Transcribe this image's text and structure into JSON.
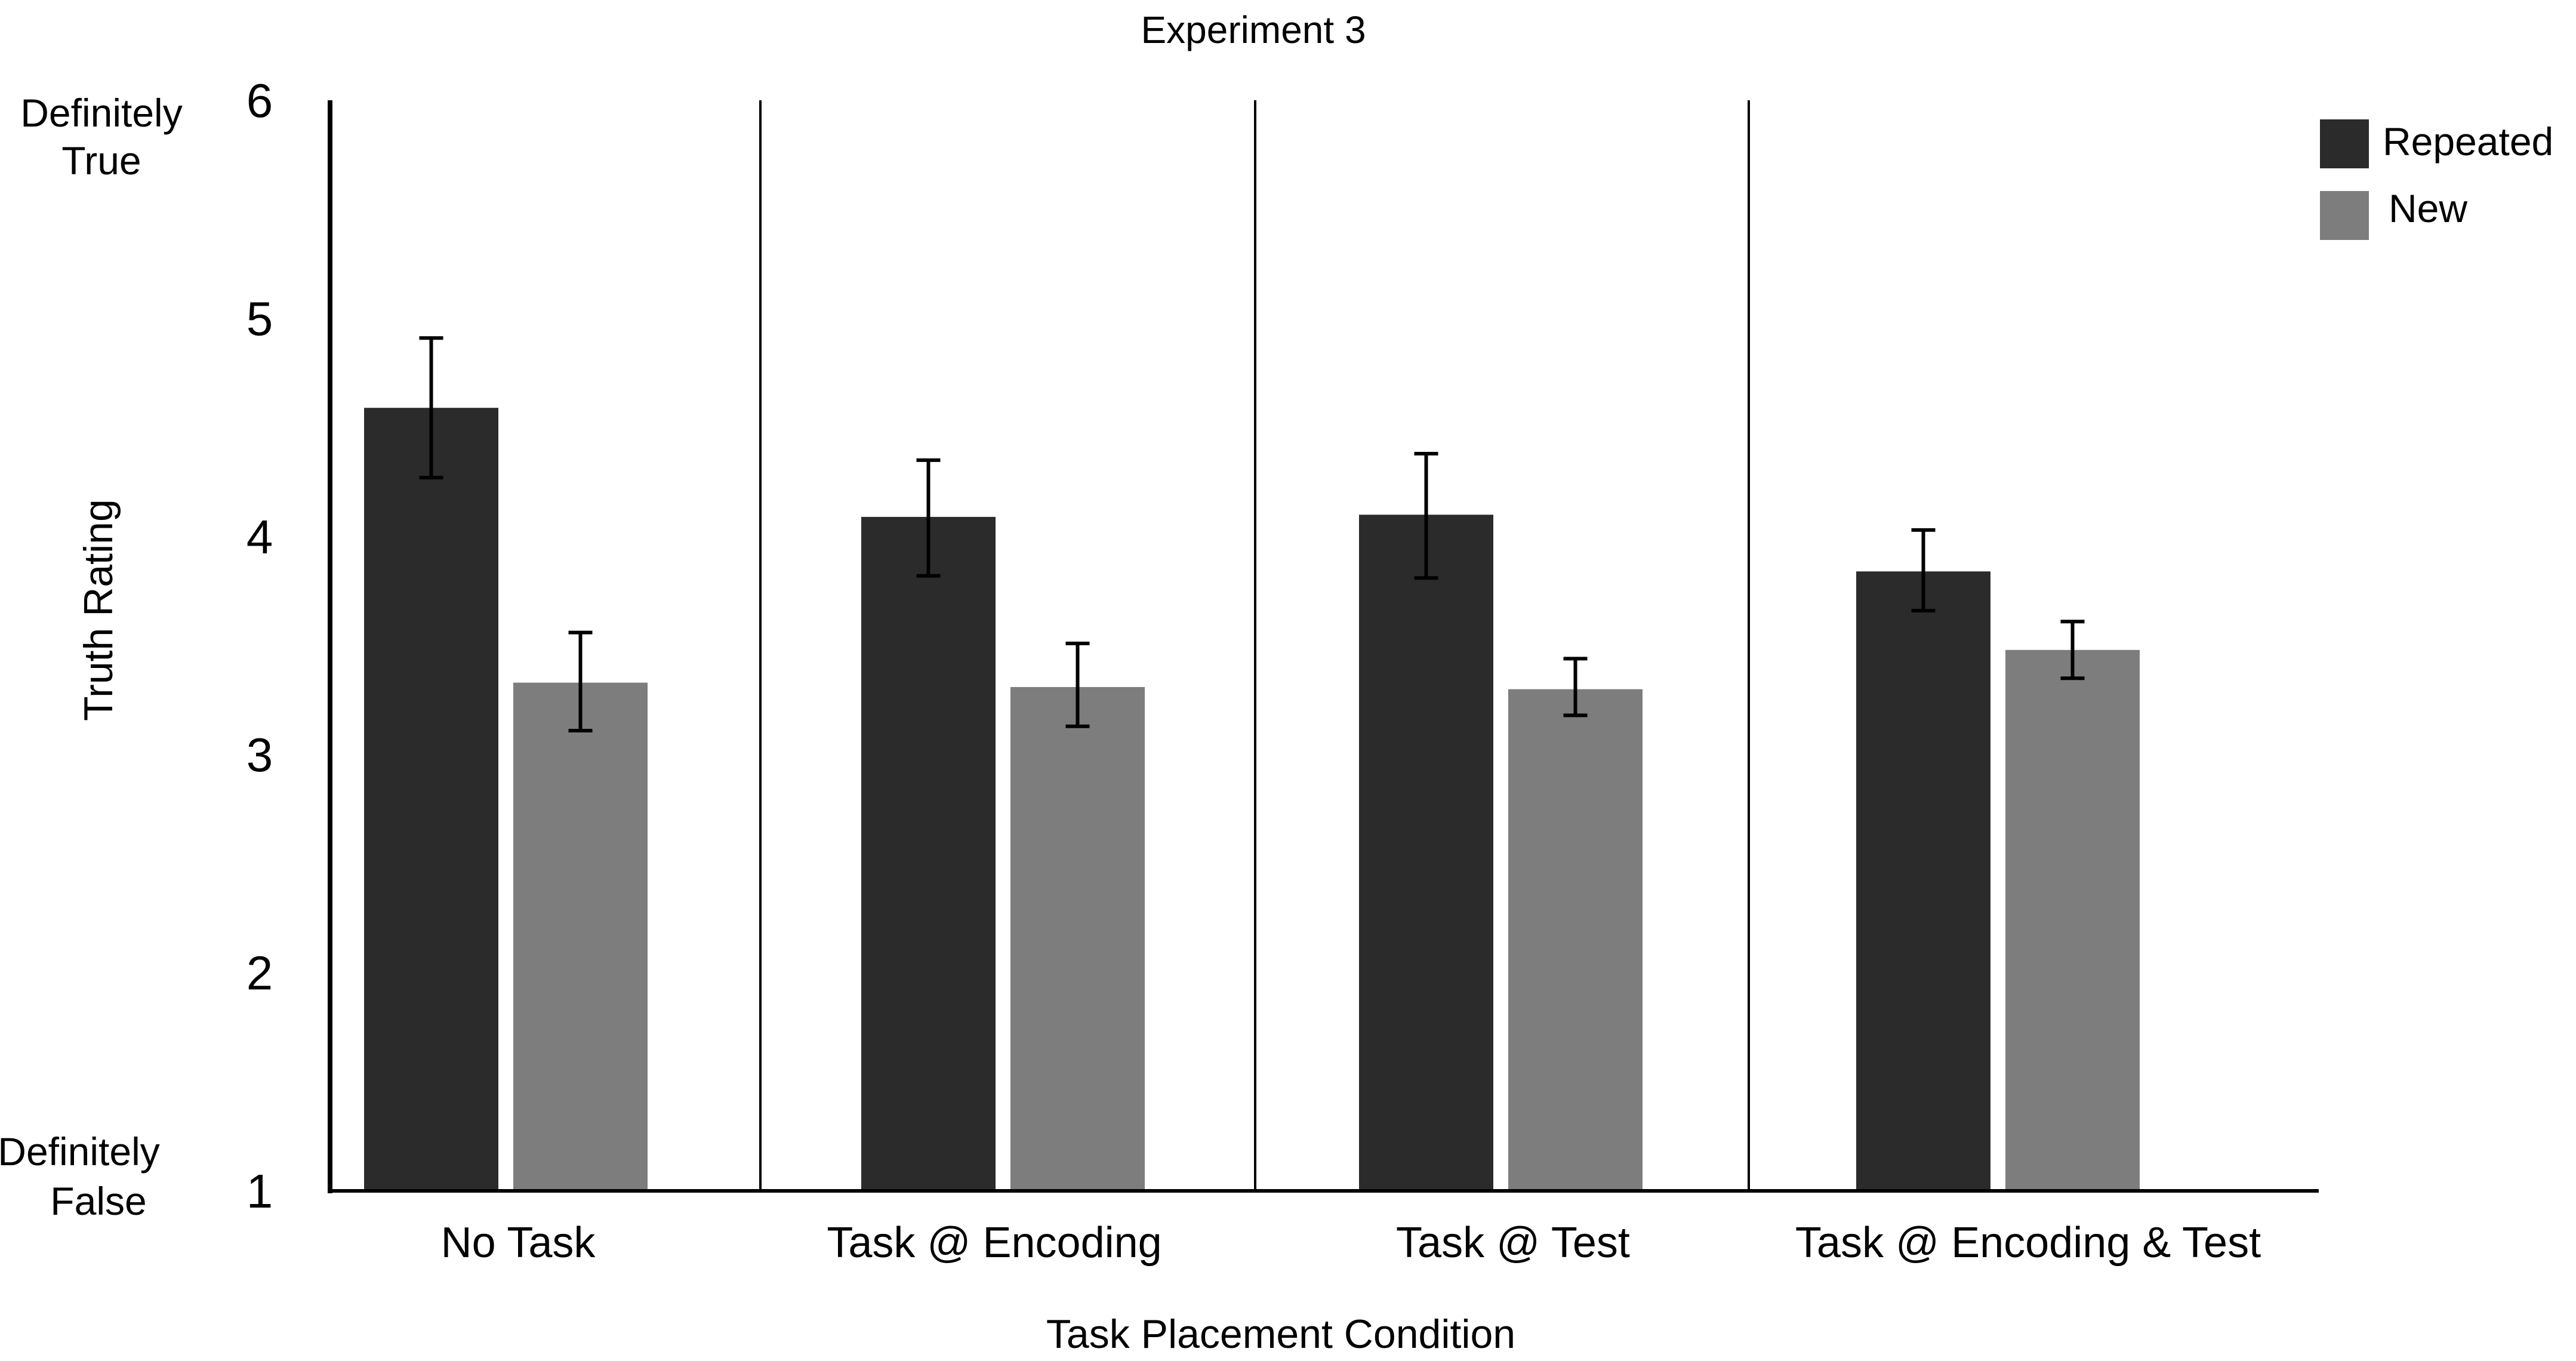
{
  "chart_data": {
    "type": "bar",
    "title": "Experiment 3",
    "xlabel": "Task Placement Condition",
    "ylabel": "Truth Rating",
    "ylim": [
      1,
      6
    ],
    "yticks": [
      "1",
      "2",
      "3",
      "4",
      "5",
      "6"
    ],
    "y_extreme_labels": {
      "top_line1": "Definitely",
      "top_line2": "True",
      "bottom_line1": "Definitely",
      "bottom_line2": "False"
    },
    "categories": [
      "No Task",
      "Task @ Encoding",
      "Task @ Test",
      "Task @ Encoding & Test"
    ],
    "series": [
      {
        "name": "Repeated",
        "color": "#2b2b2b",
        "values": [
          4.59,
          4.09,
          4.1,
          3.84
        ],
        "error_low": [
          4.27,
          3.82,
          3.81,
          3.66
        ],
        "error_high": [
          4.91,
          4.35,
          4.38,
          4.03
        ]
      },
      {
        "name": "New",
        "color": "#7d7d7d",
        "values": [
          3.33,
          3.31,
          3.3,
          3.48
        ],
        "error_low": [
          3.11,
          3.13,
          3.18,
          3.35
        ],
        "error_high": [
          3.56,
          3.51,
          3.44,
          3.61
        ]
      }
    ],
    "legend": {
      "position": "top-right",
      "items": [
        "Repeated",
        "New"
      ]
    },
    "grid": false
  }
}
